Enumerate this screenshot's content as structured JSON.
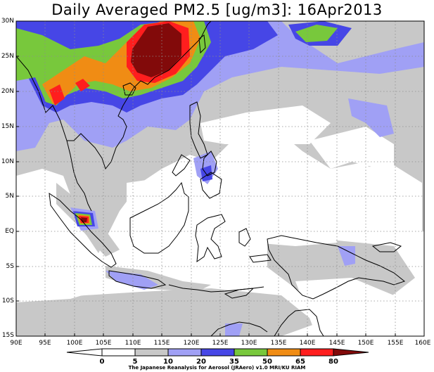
{
  "title": "Daily Averaged PM2.5 [ug/m3]: 16Apr2013",
  "credit": "The Japanese Reanalysis for Aerosol (JRAero) v1.0 MRI/KU RIAM",
  "map": {
    "lon_range": [
      90,
      160
    ],
    "lat_range": [
      -15,
      30
    ],
    "lat_ticks": [
      "30N",
      "25N",
      "20N",
      "15N",
      "10N",
      "5N",
      "EQ",
      "5S",
      "10S",
      "15S"
    ],
    "lon_ticks": [
      "90E",
      "95E",
      "100E",
      "105E",
      "110E",
      "115E",
      "120E",
      "125E",
      "130E",
      "135E",
      "140E",
      "145E",
      "150E",
      "155E",
      "160E"
    ],
    "grid": true
  },
  "legend": {
    "levels": [
      "0",
      "5",
      "10",
      "20",
      "35",
      "50",
      "65",
      "80"
    ],
    "colors": [
      "#ffffff",
      "#c8c8c8",
      "#a0a0f5",
      "#4646e6",
      "#78c83c",
      "#f08c14",
      "#ff1e1e",
      "#820a0a"
    ]
  },
  "colors": {
    "level_5_10": "#c8c8c8",
    "level_10_20": "#a0a0f5",
    "level_20_35": "#4646e6",
    "level_35_50": "#78c83c",
    "level_50_65": "#f08c14",
    "level_65_80": "#ff1e1e",
    "level_80_plus": "#820a0a"
  }
}
